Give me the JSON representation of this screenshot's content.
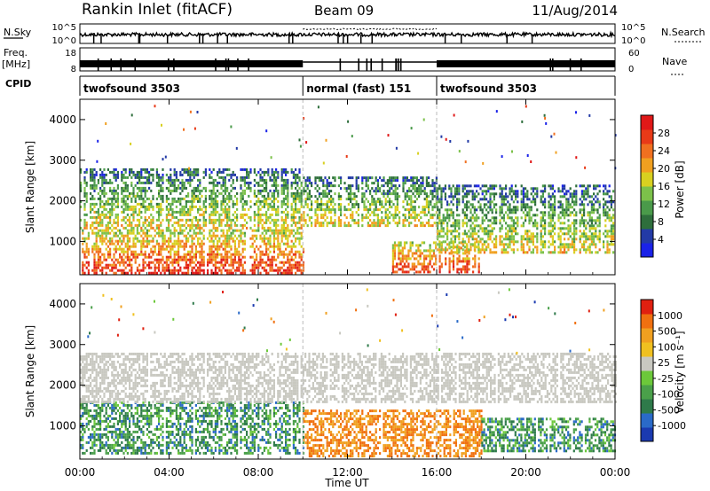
{
  "header": {
    "station": "Rankin Inlet (fitACF)",
    "beam": "Beam 09",
    "date": "11/Aug/2014"
  },
  "strip_labels": {
    "nsky": "N.Sky",
    "nsearch": "N.Search",
    "freq": "Freq.",
    "freq_unit": "[MHz]",
    "nave": "Nave",
    "cpid": "CPID",
    "nsky_ticks": [
      "10^5",
      "10^0"
    ],
    "nsearch_ticks": [
      "10^5",
      "10^0"
    ],
    "freq_ticks": [
      "18",
      "8"
    ],
    "nave_ticks": [
      "60",
      "0"
    ]
  },
  "cpid_segments": [
    {
      "label": "twofsound 3503",
      "start": 0,
      "end": 10
    },
    {
      "label": "normal (fast) 151",
      "start": 10,
      "end": 16
    },
    {
      "label": "twofsound 3503",
      "start": 16,
      "end": 24
    }
  ],
  "chart_data": [
    {
      "type": "heatmap",
      "title": "Power",
      "xlabel": "Time UT",
      "ylabel": "Slant Range [km]",
      "x_ticks": [
        "00:00",
        "04:00",
        "08:00",
        "12:00",
        "16:00",
        "20:00",
        "00:00"
      ],
      "xlim": [
        0,
        24
      ],
      "ylim": [
        180,
        4500
      ],
      "y_ticks": [
        1000,
        2000,
        3000,
        4000
      ],
      "colorbar": {
        "label": "Power [dB]",
        "ticks": [
          "4",
          "8",
          "12",
          "16",
          "20",
          "24",
          "28"
        ],
        "colors": [
          "#1a22e8",
          "#233aa6",
          "#2e6e3c",
          "#4a9a4a",
          "#7cc14a",
          "#d8d020",
          "#f0a020",
          "#f07020",
          "#e83a18",
          "#e01818"
        ]
      },
      "bands": [
        {
          "t_start": 0,
          "t_end": 10,
          "r_min": 250,
          "r_max": 1300,
          "intensity": "high"
        },
        {
          "t_start": 0,
          "t_end": 10,
          "r_min": 1300,
          "r_max": 2800,
          "intensity": "mid"
        },
        {
          "t_start": 10,
          "t_end": 16,
          "r_min": 1400,
          "r_max": 2600,
          "intensity": "mid"
        },
        {
          "t_start": 14,
          "t_end": 18,
          "r_min": 250,
          "r_max": 1000,
          "intensity": "high"
        },
        {
          "t_start": 16,
          "t_end": 24,
          "r_min": 700,
          "r_max": 2400,
          "intensity": "mid"
        }
      ]
    },
    {
      "type": "heatmap",
      "title": "Velocity",
      "xlabel": "Time UT",
      "ylabel": "Slant Range [km]",
      "x_ticks": [
        "00:00",
        "04:00",
        "08:00",
        "12:00",
        "16:00",
        "20:00",
        "00:00"
      ],
      "xlim": [
        0,
        24
      ],
      "ylim": [
        180,
        4500
      ],
      "y_ticks": [
        1000,
        2000,
        3000,
        4000
      ],
      "colorbar": {
        "label": "Velocity [m s⁻¹]",
        "ticks": [
          "1000",
          "500",
          "100",
          "25",
          "-25",
          "-100",
          "-500",
          "-1000"
        ],
        "colors": [
          "#1a3ab0",
          "#2a6ac8",
          "#2e7a4a",
          "#4aa04a",
          "#6cc83a",
          "#c8c8c0",
          "#f0c020",
          "#f0a020",
          "#f07010",
          "#e02010"
        ]
      },
      "bands": [
        {
          "t_start": 0,
          "t_end": 10,
          "r_min": 300,
          "r_max": 1600,
          "flow": "toward"
        },
        {
          "t_start": 0,
          "t_end": 24,
          "r_min": 1600,
          "r_max": 2800,
          "flow": "ground"
        },
        {
          "t_start": 10,
          "t_end": 18,
          "r_min": 250,
          "r_max": 1400,
          "flow": "away"
        },
        {
          "t_start": 18,
          "t_end": 24,
          "r_min": 400,
          "r_max": 1200,
          "flow": "toward"
        }
      ]
    }
  ]
}
